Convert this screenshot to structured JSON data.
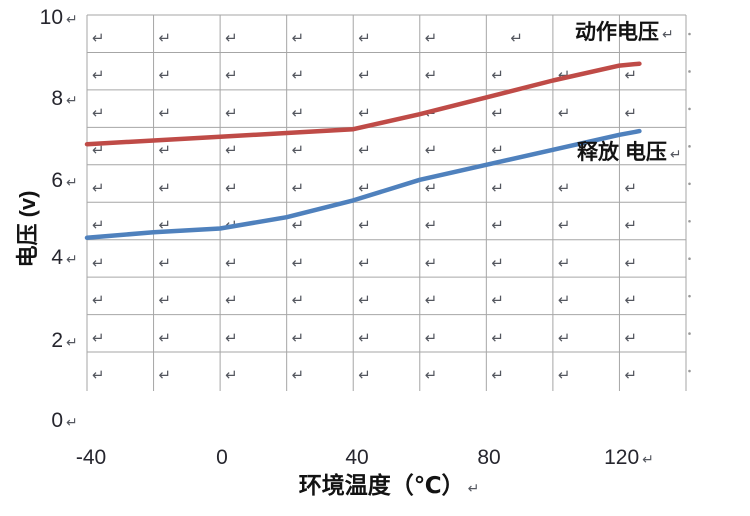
{
  "chart_data": {
    "type": "line",
    "title": "",
    "xlabel": "环境温度（℃）",
    "ylabel": "电压 (v)",
    "xlim": [
      -40,
      140
    ],
    "ylim": [
      0,
      10
    ],
    "grid": "on",
    "grid_x_step_degC": 20,
    "grid_y_step_V": 1,
    "legend_position": "inline-labels-at-line-ends",
    "x_ticks": [
      {
        "value": -40,
        "label": "-40",
        "return_mark": false
      },
      {
        "value": 0,
        "label": "0",
        "return_mark": false
      },
      {
        "value": 40,
        "label": "40",
        "return_mark": false
      },
      {
        "value": 80,
        "label": "80",
        "return_mark": false
      },
      {
        "value": 120,
        "label": "120",
        "return_mark": true
      }
    ],
    "y_ticks": [
      {
        "value": 10,
        "label": "10",
        "return_mark": true
      },
      {
        "value": 8,
        "label": "8",
        "return_mark": true
      },
      {
        "value": 6,
        "label": "6",
        "return_mark": true
      },
      {
        "value": 4,
        "label": "4",
        "return_mark": true
      },
      {
        "value": 2,
        "label": "2",
        "return_mark": true
      },
      {
        "value": 0,
        "label": "0",
        "return_mark": true
      }
    ],
    "series": [
      {
        "name": "动作电压",
        "color": "#bf4b47",
        "x": [
          -40,
          -20,
          0,
          20,
          40,
          60,
          80,
          100,
          120,
          126
        ],
        "y": [
          6.55,
          6.65,
          6.75,
          6.85,
          6.95,
          7.35,
          7.8,
          8.25,
          8.65,
          8.7
        ]
      },
      {
        "name": "释放 电压",
        "color": "#4f81bd",
        "x": [
          -40,
          -20,
          0,
          20,
          40,
          60,
          80,
          100,
          120,
          126
        ],
        "y": [
          4.05,
          4.2,
          4.3,
          4.6,
          5.05,
          5.6,
          6.0,
          6.4,
          6.8,
          6.9
        ]
      }
    ]
  },
  "decorations": {
    "return_mark": "↵",
    "cell_marks_note": "word-paragraph-return-mark-in-each-grid-cell",
    "right_edge_dots": 10,
    "grid_color": "#a6a6a6",
    "mark_color": "#54575f",
    "dot_color": "#999999",
    "tick_text_color": "#26262e",
    "label_text_color": "#131313"
  }
}
